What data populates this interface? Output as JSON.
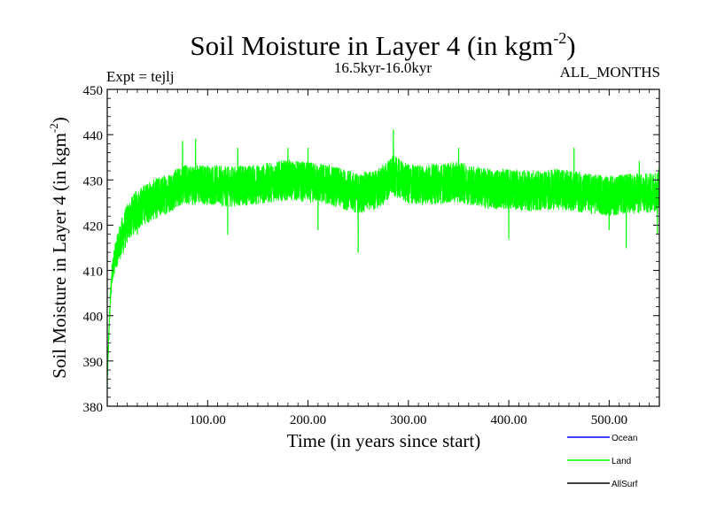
{
  "colors": {
    "background": "#ffffff",
    "axis": "#000000",
    "ocean": "#0000ff",
    "land": "#00ff00",
    "allsurf": "#000000"
  },
  "chart_data": {
    "type": "line",
    "title_main": "Soil Moisture in Layer 4 (in kgm",
    "title_sup": "-2",
    "title_close": ")",
    "experiment": "Expt = tejlj",
    "period": "16.5kyr-16.0kyr",
    "months": "ALL_MONTHS",
    "xlabel": "Time (in years since start)",
    "ylabel_main": "Soil Moisture in Layer 4 (in kgm",
    "ylabel_sup": "-2",
    "ylabel_close": ")",
    "xlim": [
      0,
      550
    ],
    "ylim": [
      380,
      450
    ],
    "x_ticks": [
      {
        "value": 100,
        "label": "100.00"
      },
      {
        "value": 200,
        "label": "200.00"
      },
      {
        "value": 300,
        "label": "300.00"
      },
      {
        "value": 400,
        "label": "400.00"
      },
      {
        "value": 500,
        "label": "500.00"
      }
    ],
    "y_ticks": [
      {
        "value": 380,
        "label": "380"
      },
      {
        "value": 390,
        "label": "390"
      },
      {
        "value": 400,
        "label": "400"
      },
      {
        "value": 410,
        "label": "410"
      },
      {
        "value": 420,
        "label": "420"
      },
      {
        "value": 430,
        "label": "430"
      },
      {
        "value": 440,
        "label": "440"
      },
      {
        "value": 450,
        "label": "450"
      }
    ],
    "legend": [
      {
        "name": "Ocean",
        "color": "#0000ff"
      },
      {
        "name": "Land",
        "color": "#00ff00"
      },
      {
        "name": "AllSurf",
        "color": "#000000"
      }
    ],
    "series": [
      {
        "name": "Land",
        "color": "#00ff00",
        "noise_amplitude": 4.5,
        "points": [
          [
            0,
            384
          ],
          [
            1,
            392
          ],
          [
            2,
            398
          ],
          [
            3,
            403
          ],
          [
            4,
            407
          ],
          [
            5,
            410
          ],
          [
            8,
            413
          ],
          [
            12,
            416
          ],
          [
            16,
            418
          ],
          [
            20,
            420.5
          ],
          [
            25,
            422
          ],
          [
            30,
            423.5
          ],
          [
            40,
            425
          ],
          [
            50,
            426
          ],
          [
            60,
            427
          ],
          [
            75,
            429
          ],
          [
            90,
            429
          ],
          [
            100,
            429
          ],
          [
            120,
            428.5
          ],
          [
            150,
            429
          ],
          [
            180,
            430
          ],
          [
            200,
            429.5
          ],
          [
            220,
            429
          ],
          [
            250,
            427
          ],
          [
            270,
            428
          ],
          [
            285,
            431
          ],
          [
            300,
            429
          ],
          [
            320,
            429
          ],
          [
            350,
            429.5
          ],
          [
            380,
            428
          ],
          [
            400,
            428
          ],
          [
            420,
            427.5
          ],
          [
            450,
            428
          ],
          [
            480,
            427
          ],
          [
            500,
            426.5
          ],
          [
            520,
            427
          ],
          [
            540,
            427
          ],
          [
            550,
            428
          ]
        ],
        "spikes": [
          [
            75,
            438.5
          ],
          [
            88,
            439
          ],
          [
            130,
            437
          ],
          [
            180,
            437
          ],
          [
            200,
            437
          ],
          [
            285,
            441
          ],
          [
            350,
            437
          ],
          [
            465,
            437
          ],
          [
            530,
            434
          ],
          [
            550,
            433
          ],
          [
            250,
            414
          ],
          [
            517,
            415
          ],
          [
            210,
            419
          ],
          [
            400,
            417
          ],
          [
            120,
            418
          ],
          [
            30,
            418
          ],
          [
            500,
            419
          ],
          [
            548,
            418
          ]
        ]
      }
    ]
  }
}
